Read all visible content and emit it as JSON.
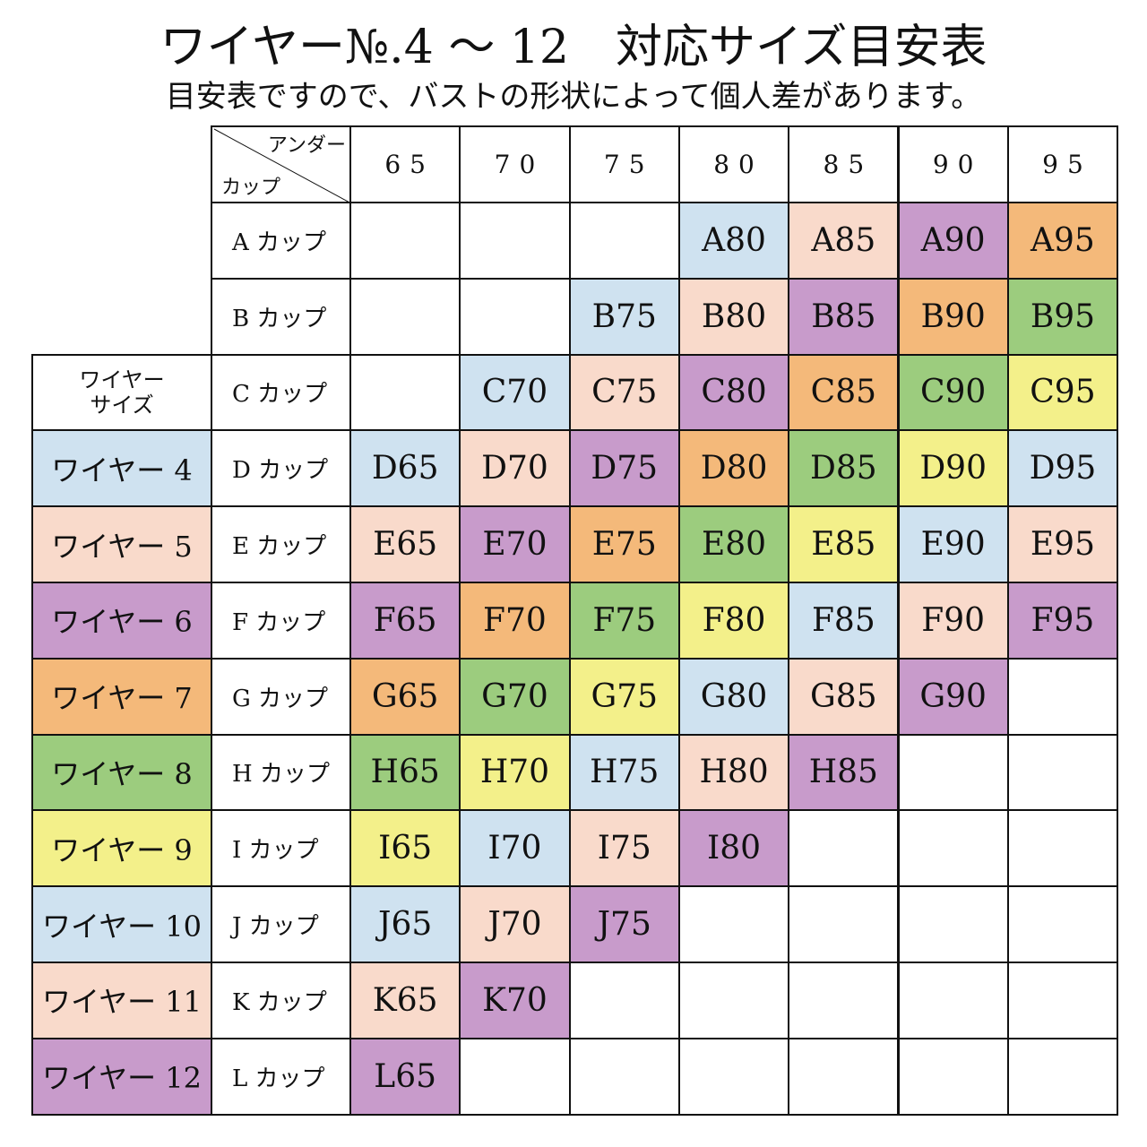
{
  "header": {
    "title": "ワイヤー№.4 ～ 12　対応サイズ目安表",
    "subtitle": "目安表ですので、バストの形状によって個人差があります。"
  },
  "table": {
    "corner_top": "アンダー",
    "corner_bottom": "カップ",
    "wire_header": [
      "ワイヤー",
      "サイズ"
    ],
    "columns": [
      "65",
      "70",
      "75",
      "80",
      "85",
      "90",
      "95"
    ],
    "wires": [
      {
        "label": "ワイヤー 4",
        "color": "#cfe2f0"
      },
      {
        "label": "ワイヤー 5",
        "color": "#f9dacb"
      },
      {
        "label": "ワイヤー 6",
        "color": "#c89bcb"
      },
      {
        "label": "ワイヤー 7",
        "color": "#f4b97a"
      },
      {
        "label": "ワイヤー 8",
        "color": "#9ccc7e"
      },
      {
        "label": "ワイヤー 9",
        "color": "#f3f08a"
      },
      {
        "label": "ワイヤー 10",
        "color": "#cfe2f0"
      },
      {
        "label": "ワイヤー 11",
        "color": "#f9dacb"
      },
      {
        "label": "ワイヤー 12",
        "color": "#c89bcb"
      }
    ],
    "rows": [
      {
        "cup": "A カップ",
        "cells": [
          null,
          null,
          null,
          {
            "text": "A80",
            "color": "#cfe2f0"
          },
          {
            "text": "A85",
            "color": "#f9dacb"
          },
          {
            "text": "A90",
            "color": "#c89bcb"
          },
          {
            "text": "A95",
            "color": "#f4b97a"
          }
        ]
      },
      {
        "cup": "B カップ",
        "cells": [
          null,
          null,
          {
            "text": "B75",
            "color": "#cfe2f0"
          },
          {
            "text": "B80",
            "color": "#f9dacb"
          },
          {
            "text": "B85",
            "color": "#c89bcb"
          },
          {
            "text": "B90",
            "color": "#f4b97a"
          },
          {
            "text": "B95",
            "color": "#9ccc7e"
          }
        ]
      },
      {
        "cup": "C カップ",
        "cells": [
          null,
          {
            "text": "C70",
            "color": "#cfe2f0"
          },
          {
            "text": "C75",
            "color": "#f9dacb"
          },
          {
            "text": "C80",
            "color": "#c89bcb"
          },
          {
            "text": "C85",
            "color": "#f4b97a"
          },
          {
            "text": "C90",
            "color": "#9ccc7e"
          },
          {
            "text": "C95",
            "color": "#f3f08a"
          }
        ]
      },
      {
        "cup": "D カップ",
        "cells": [
          {
            "text": "D65",
            "color": "#cfe2f0"
          },
          {
            "text": "D70",
            "color": "#f9dacb"
          },
          {
            "text": "D75",
            "color": "#c89bcb"
          },
          {
            "text": "D80",
            "color": "#f4b97a"
          },
          {
            "text": "D85",
            "color": "#9ccc7e"
          },
          {
            "text": "D90",
            "color": "#f3f08a"
          },
          {
            "text": "D95",
            "color": "#cfe2f0"
          }
        ]
      },
      {
        "cup": "E カップ",
        "cells": [
          {
            "text": "E65",
            "color": "#f9dacb"
          },
          {
            "text": "E70",
            "color": "#c89bcb"
          },
          {
            "text": "E75",
            "color": "#f4b97a"
          },
          {
            "text": "E80",
            "color": "#9ccc7e"
          },
          {
            "text": "E85",
            "color": "#f3f08a"
          },
          {
            "text": "E90",
            "color": "#cfe2f0"
          },
          {
            "text": "E95",
            "color": "#f9dacb"
          }
        ]
      },
      {
        "cup": "F カップ",
        "cells": [
          {
            "text": "F65",
            "color": "#c89bcb"
          },
          {
            "text": "F70",
            "color": "#f4b97a"
          },
          {
            "text": "F75",
            "color": "#9ccc7e"
          },
          {
            "text": "F80",
            "color": "#f3f08a"
          },
          {
            "text": "F85",
            "color": "#cfe2f0"
          },
          {
            "text": "F90",
            "color": "#f9dacb"
          },
          {
            "text": "F95",
            "color": "#c89bcb"
          }
        ]
      },
      {
        "cup": "G カップ",
        "cells": [
          {
            "text": "G65",
            "color": "#f4b97a"
          },
          {
            "text": "G70",
            "color": "#9ccc7e"
          },
          {
            "text": "G75",
            "color": "#f3f08a"
          },
          {
            "text": "G80",
            "color": "#cfe2f0"
          },
          {
            "text": "G85",
            "color": "#f9dacb"
          },
          {
            "text": "G90",
            "color": "#c89bcb"
          },
          null
        ]
      },
      {
        "cup": "H カップ",
        "cells": [
          {
            "text": "H65",
            "color": "#9ccc7e"
          },
          {
            "text": "H70",
            "color": "#f3f08a"
          },
          {
            "text": "H75",
            "color": "#cfe2f0"
          },
          {
            "text": "H80",
            "color": "#f9dacb"
          },
          {
            "text": "H85",
            "color": "#c89bcb"
          },
          null,
          null
        ]
      },
      {
        "cup": "I カップ",
        "cells": [
          {
            "text": "I65",
            "color": "#f3f08a"
          },
          {
            "text": "I70",
            "color": "#cfe2f0"
          },
          {
            "text": "I75",
            "color": "#f9dacb"
          },
          {
            "text": "I80",
            "color": "#c89bcb"
          },
          null,
          null,
          null
        ]
      },
      {
        "cup": "J カップ",
        "cells": [
          {
            "text": "J65",
            "color": "#cfe2f0"
          },
          {
            "text": "J70",
            "color": "#f9dacb"
          },
          {
            "text": "J75",
            "color": "#c89bcb"
          },
          null,
          null,
          null,
          null
        ]
      },
      {
        "cup": "K カップ",
        "cells": [
          {
            "text": "K65",
            "color": "#f9dacb"
          },
          {
            "text": "K70",
            "color": "#c89bcb"
          },
          null,
          null,
          null,
          null,
          null
        ]
      },
      {
        "cup": "L カップ",
        "cells": [
          {
            "text": "L65",
            "color": "#c89bcb"
          },
          null,
          null,
          null,
          null,
          null,
          null
        ]
      }
    ]
  }
}
